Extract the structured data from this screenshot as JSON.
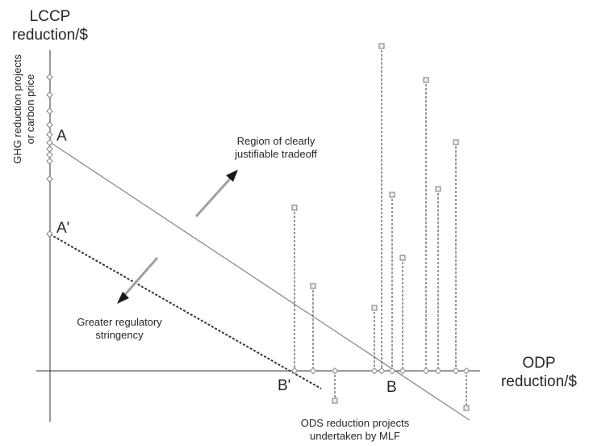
{
  "labels": {
    "y_axis_title_line1": "LCCP",
    "y_axis_title_line2": "reduction/$",
    "x_axis_title_line1": "ODP",
    "x_axis_title_line2": "reduction/$",
    "y_side_label_line1": "GHG reduction projects",
    "y_side_label_line2": "or carbon price",
    "x_bottom_label_line1": "ODS reduction projects",
    "x_bottom_label_line2": "undertaken by MLF",
    "point_A": "A",
    "point_A_prime": "A'",
    "point_B": "B",
    "point_B_prime": "B'",
    "region_label_line1": "Region of clearly",
    "region_label_line2": "justifiable tradeoff",
    "stringency_label_line1": "Greater regulatory",
    "stringency_label_line2": "stringency"
  },
  "colors": {
    "axis": "#333333",
    "line_solid": "#8c8c8c",
    "line_dashed": "#333333",
    "marker_fill": "#ffffff",
    "marker_stroke": "#7f7f7f",
    "square_fill": "#eeeeee",
    "arrow_shaft": "#a0a0a0",
    "arrow_head": "#1a1a1a"
  }
}
